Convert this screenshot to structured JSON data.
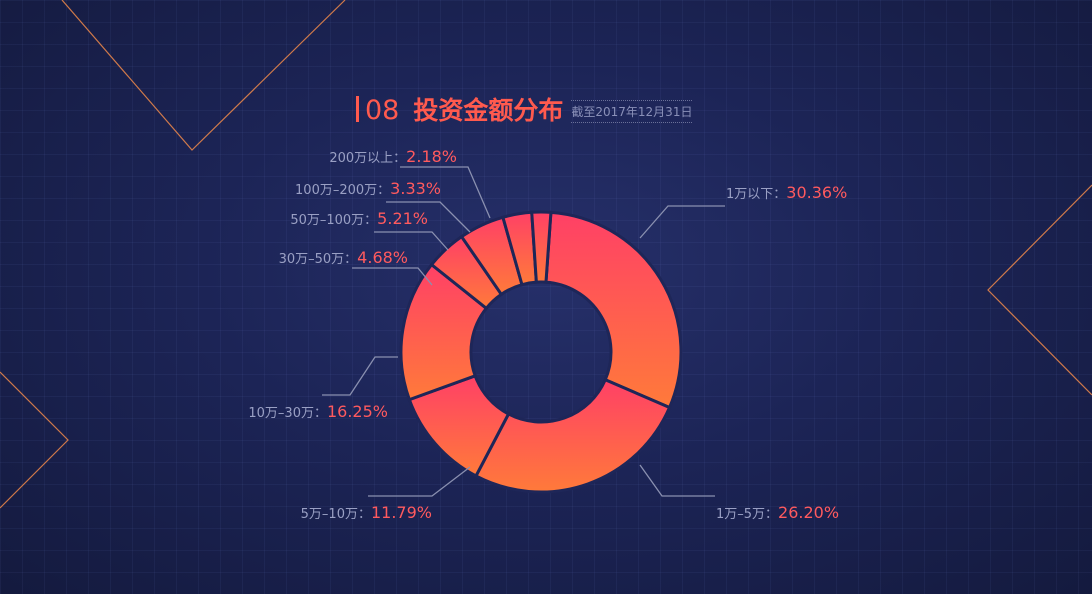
{
  "title": {
    "number": "08",
    "text": "投资金额分布",
    "subtitle": "截至2017年12月31日"
  },
  "colors": {
    "background": "#1c2456",
    "accent": "#ff5a4e",
    "line": "#f0894a",
    "gradient_start": "#ff4066",
    "gradient_end": "#ff7a3a"
  },
  "chart_data": {
    "type": "pie",
    "donut": true,
    "title": "投资金额分布",
    "categories": [
      "1万以下",
      "1万-5万",
      "5万-10万",
      "10万-30万",
      "30万-50万",
      "50万-100万",
      "100万-200万",
      "200万以上"
    ],
    "values": [
      30.36,
      26.2,
      11.79,
      16.25,
      4.68,
      5.21,
      3.33,
      2.18
    ],
    "value_labels": [
      "30.36%",
      "26.20%",
      "11.79%",
      "16.25%",
      "4.68%",
      "5.21%",
      "3.33%",
      "2.18%"
    ],
    "name_labels": [
      "1万以下：",
      "1万–5万：",
      "5万–10万：",
      "10万–30万：",
      "30万–50万：",
      "50万–100万：",
      "100万–200万：",
      "200万以上："
    ],
    "unit": "%"
  }
}
